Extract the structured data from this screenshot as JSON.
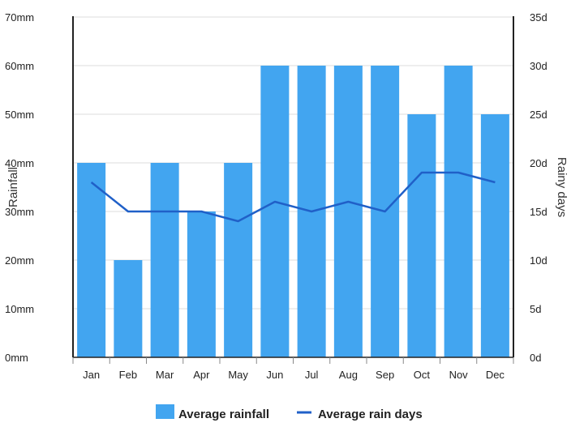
{
  "chart_data": {
    "type": "bar",
    "categories": [
      "Jan",
      "Feb",
      "Mar",
      "Apr",
      "May",
      "Jun",
      "Jul",
      "Aug",
      "Sep",
      "Oct",
      "Nov",
      "Dec"
    ],
    "series": [
      {
        "name": "Average rainfall",
        "type": "bar",
        "axis": "left",
        "color": "#42a5f0",
        "values": [
          40,
          20,
          40,
          30,
          40,
          60,
          60,
          60,
          60,
          50,
          60,
          50
        ]
      },
      {
        "name": "Average rain days",
        "type": "line",
        "axis": "right",
        "color": "#2060c8",
        "values": [
          18,
          15,
          15,
          15,
          14,
          16,
          15,
          16,
          15,
          19,
          19,
          18
        ]
      }
    ],
    "ylabel": "Rainfall",
    "y2label": "Rainy days",
    "ylim": [
      0,
      70
    ],
    "y2lim": [
      0,
      35
    ],
    "yticks": [
      "0mm",
      "10mm",
      "20mm",
      "30mm",
      "40mm",
      "50mm",
      "60mm",
      "70mm"
    ],
    "y2ticks": [
      "0d",
      "5d",
      "10d",
      "15d",
      "20d",
      "25d",
      "30d",
      "35d"
    ],
    "grid": true,
    "legend_position": "bottom"
  }
}
